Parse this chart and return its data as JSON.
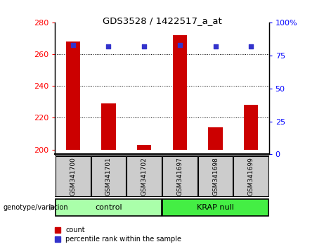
{
  "title": "GDS3528 / 1422517_a_at",
  "categories": [
    "GSM341700",
    "GSM341701",
    "GSM341702",
    "GSM341697",
    "GSM341698",
    "GSM341699"
  ],
  "bar_values": [
    268,
    229,
    203,
    272,
    214,
    228
  ],
  "dot_values": [
    83,
    82,
    82,
    83,
    82,
    82
  ],
  "bar_color": "#cc0000",
  "dot_color": "#3333cc",
  "ylim_left": [
    197,
    280
  ],
  "ylim_right": [
    0,
    100
  ],
  "yticks_left": [
    200,
    220,
    240,
    260,
    280
  ],
  "yticks_right": [
    0,
    25,
    50,
    75,
    100
  ],
  "yticklabels_right": [
    "0",
    "25",
    "50",
    "75",
    "100%"
  ],
  "grid_values": [
    220,
    240,
    260
  ],
  "control_color": "#aaffaa",
  "krap_color": "#44ee44",
  "xlabel_bg": "#cccccc",
  "legend_count_label": "count",
  "legend_pct_label": "percentile rank within the sample",
  "genotype_label": "genotype/variation",
  "bar_width": 0.4
}
